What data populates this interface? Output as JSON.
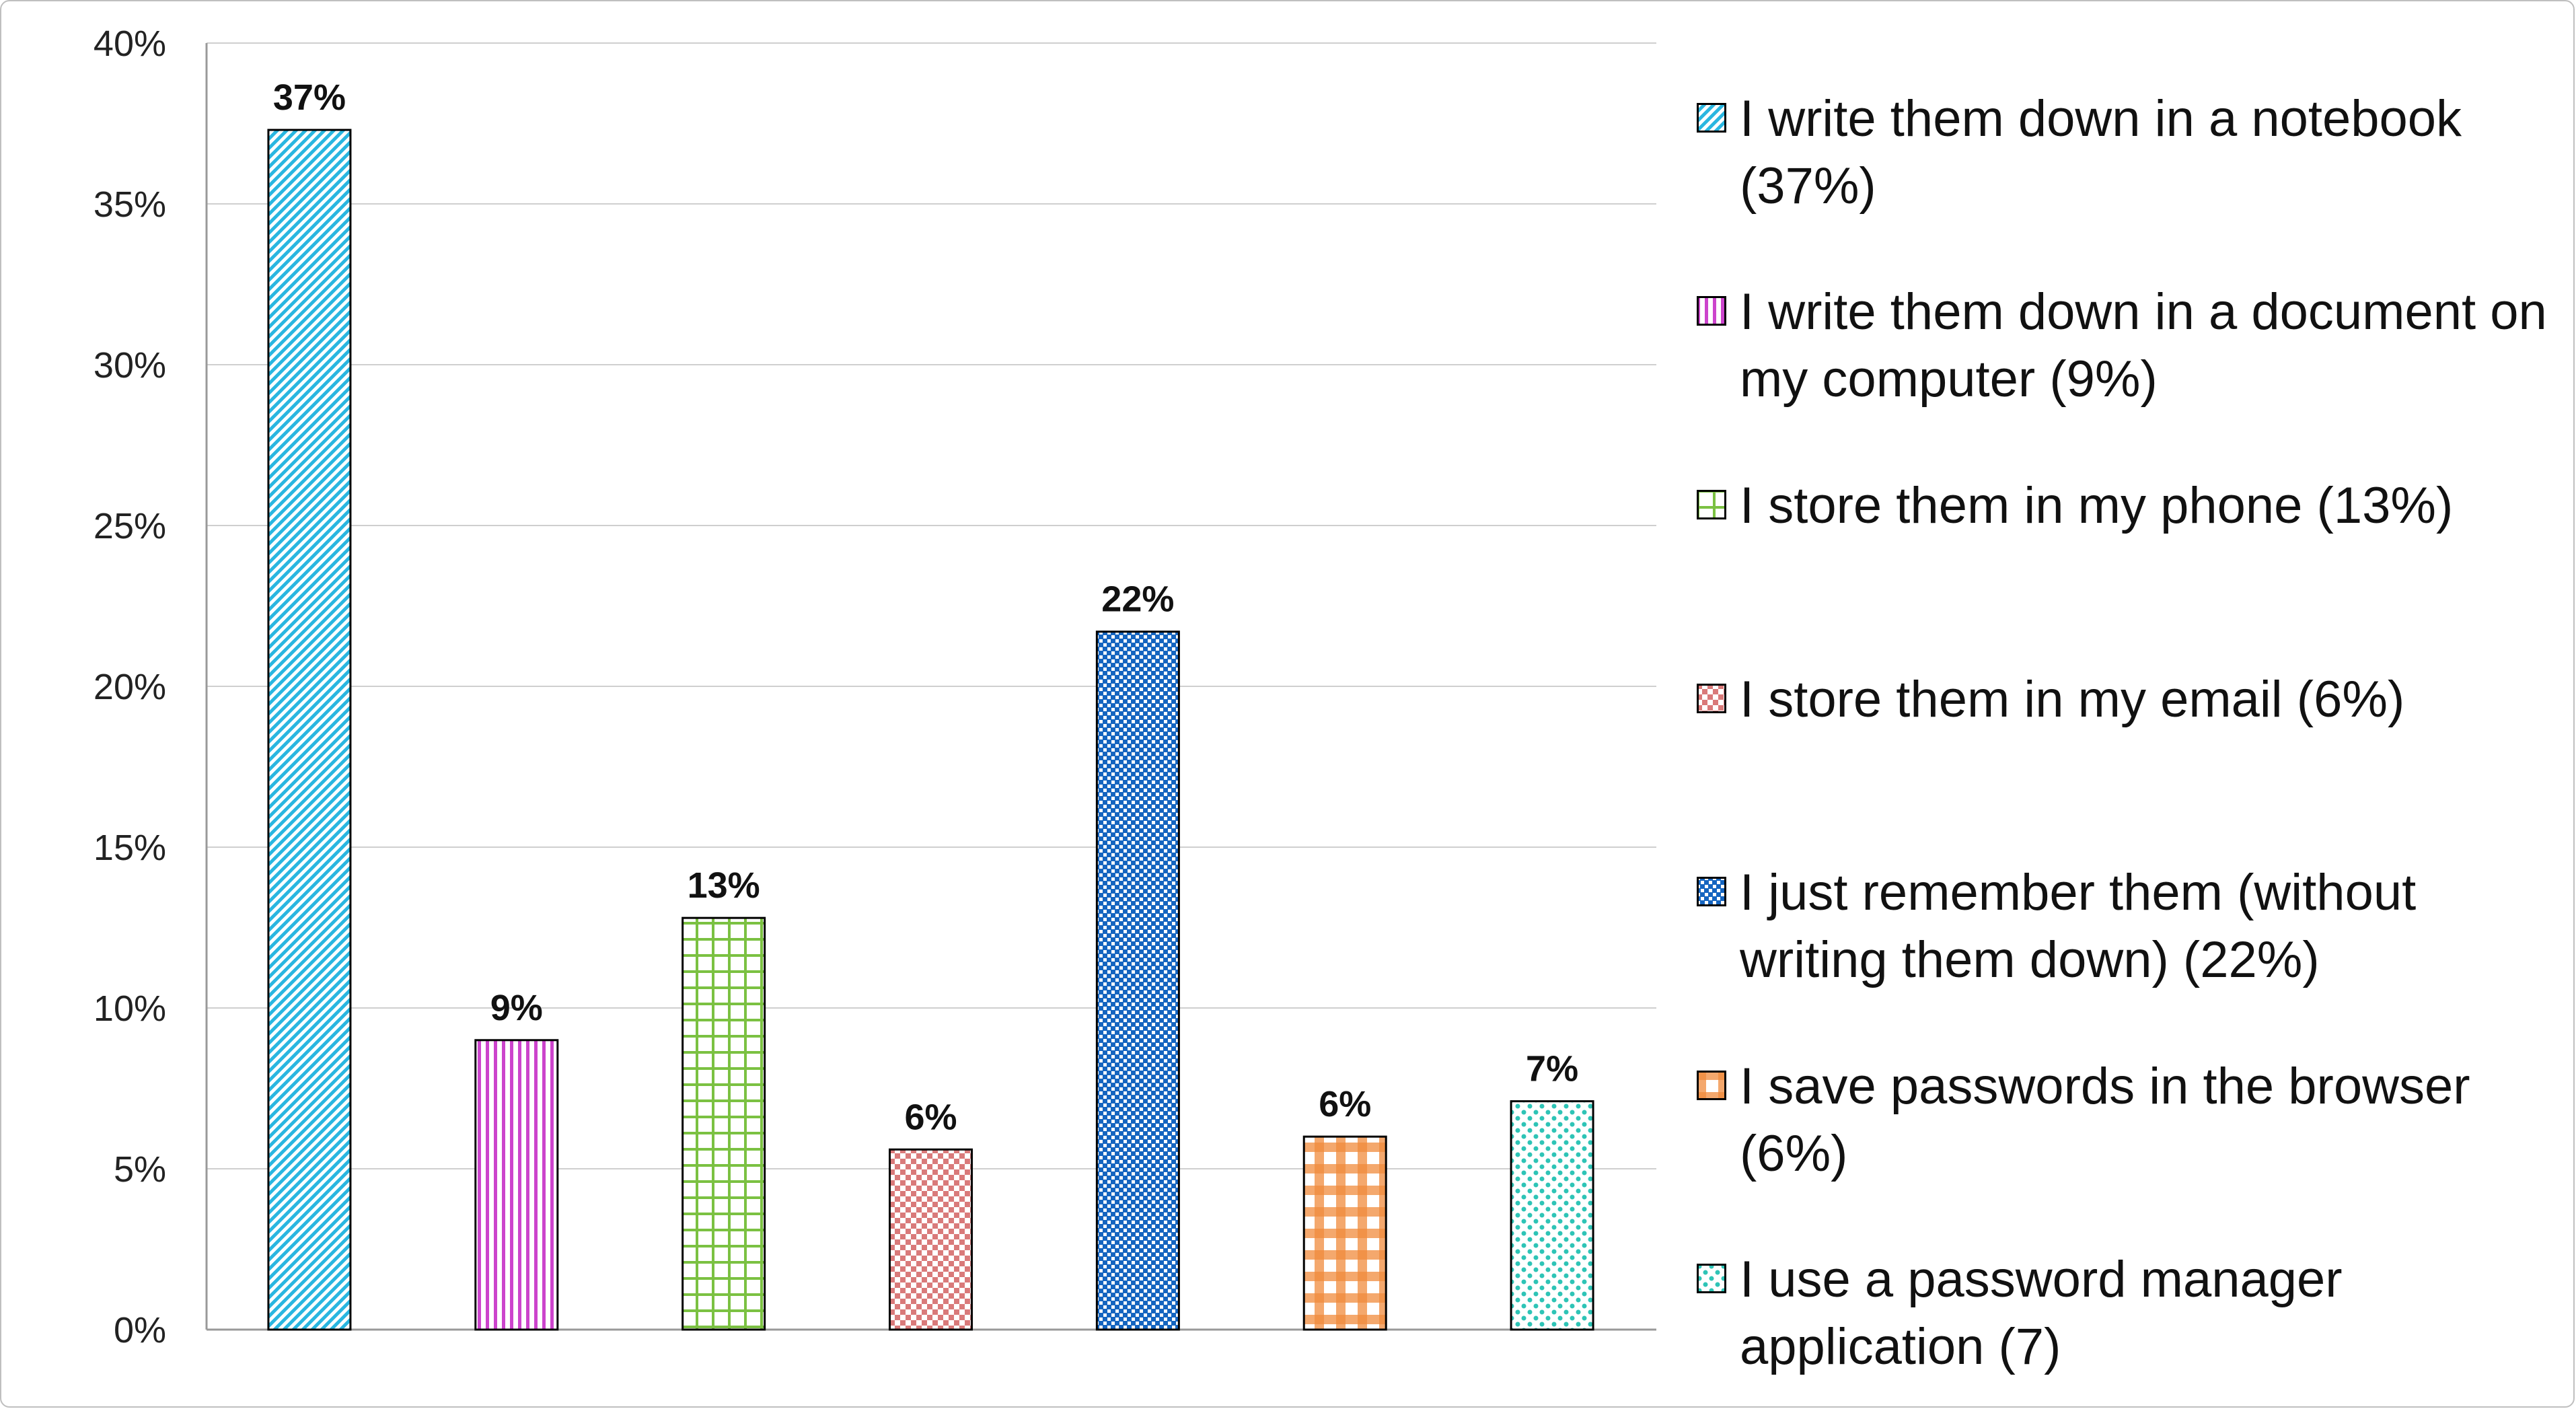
{
  "chart_data": {
    "type": "bar",
    "categories": [
      "I write them down in a notebook (37%)",
      "I write them down in a document on my computer (9%)",
      "I store them in my phone (13%)",
      "I store them in my email (6%)",
      "I just remember them (without writing them down) (22%)",
      "I save passwords in the browser (6%)",
      "I use a password manager application (7)"
    ],
    "values": [
      37.3,
      9.0,
      12.8,
      5.6,
      21.7,
      6.0,
      7.1
    ],
    "data_labels": [
      "37%",
      "9%",
      "13%",
      "6%",
      "22%",
      "6%",
      "7%"
    ],
    "ylim": [
      0,
      40
    ],
    "yticks": [
      {
        "value": 0,
        "label": "0%"
      },
      {
        "value": 5,
        "label": "5%"
      },
      {
        "value": 10,
        "label": "10%"
      },
      {
        "value": 15,
        "label": "15%"
      },
      {
        "value": 20,
        "label": "20%"
      },
      {
        "value": 25,
        "label": "25%"
      },
      {
        "value": 30,
        "label": "30%"
      },
      {
        "value": 35,
        "label": "35%"
      },
      {
        "value": 40,
        "label": "40%"
      }
    ],
    "grid": true,
    "legend_position": "right",
    "title": "",
    "xlabel": "",
    "ylabel": "",
    "colors": [
      "#29b6e0",
      "#cc44cc",
      "#7bc142",
      "#d97a7a",
      "#1565c0",
      "#f08a3c",
      "#2ec4b6"
    ],
    "patterns": [
      "diagonal",
      "vertical",
      "grid",
      "checker",
      "dense-checker",
      "plaid",
      "dots"
    ]
  }
}
